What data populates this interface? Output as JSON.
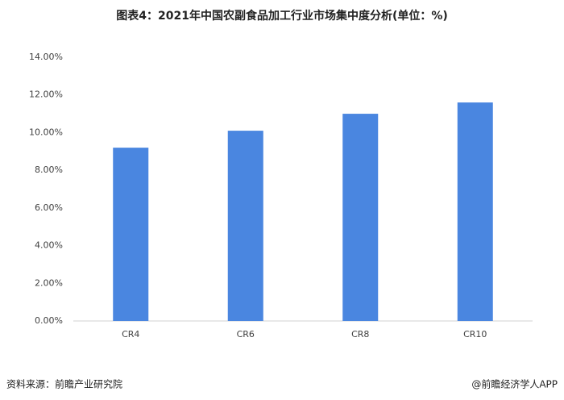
{
  "chart_data": {
    "type": "bar",
    "title": "图表4：2021年中国农副食品加工行业市场集中度分析(单位：%)",
    "categories": [
      "CR4",
      "CR6",
      "CR8",
      "CR10"
    ],
    "values": [
      9.2,
      10.1,
      11.0,
      11.6
    ],
    "color": "#4a86e0",
    "ylim": [
      0,
      14
    ],
    "yticks": [
      {
        "value": 0,
        "label": "0.00%"
      },
      {
        "value": 2,
        "label": "2.00%"
      },
      {
        "value": 4,
        "label": "4.00%"
      },
      {
        "value": 6,
        "label": "6.00%"
      },
      {
        "value": 8,
        "label": "8.00%"
      },
      {
        "value": 10,
        "label": "10.00%"
      },
      {
        "value": 12,
        "label": "12.00%"
      },
      {
        "value": 14,
        "label": "14.00%"
      }
    ],
    "grid": false,
    "source": "资料来源：前瞻产业研究院",
    "credit": "@前瞻经济学人APP"
  }
}
